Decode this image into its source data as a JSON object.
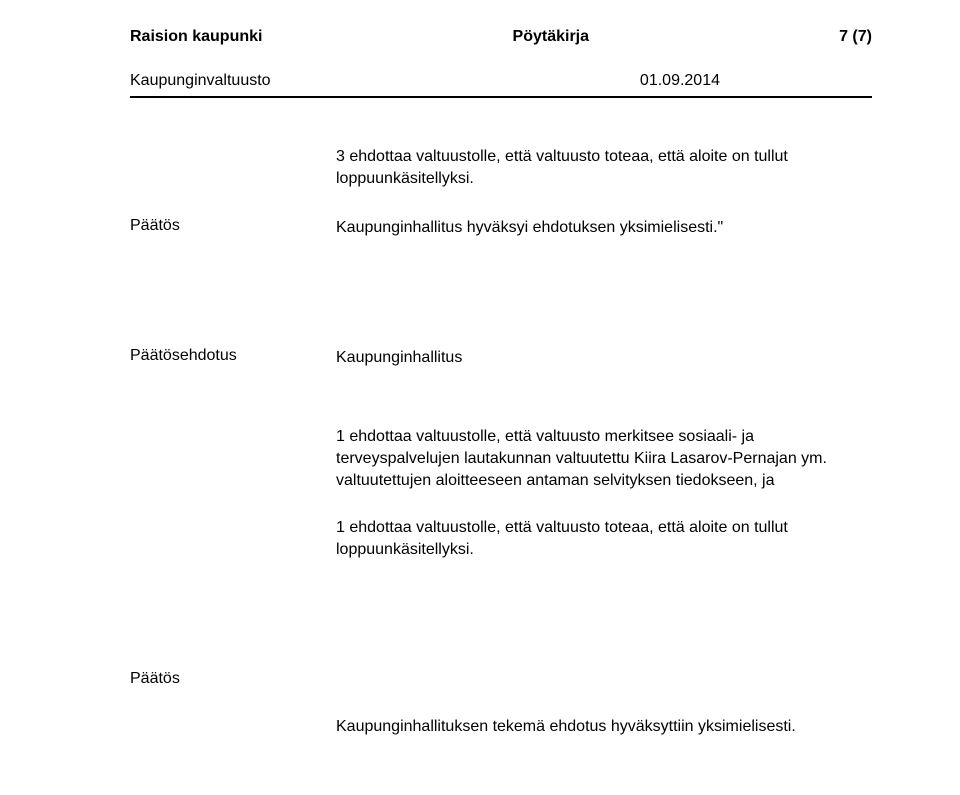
{
  "header": {
    "org": "Raision kaupunki",
    "doctype": "Pöytäkirja",
    "pagenum": "7 (7)"
  },
  "subheader": {
    "body": "Kaupunginvaltuusto",
    "date": "01.09.2014"
  },
  "content": {
    "top_para": "3 ehdottaa valtuustolle, että valtuusto toteaa, että aloite on tullut loppuunkäsitellyksi.",
    "decision1_label": "Päätös",
    "decision1_text": "Kaupunginhallitus hyväksyi ehdotuksen yksimielisesti.\"",
    "proposal_label": "Päätösehdotus",
    "proposal_body": "Kaupunginhallitus",
    "proposal_para1": "1 ehdottaa valtuustolle, että valtuusto merkitsee sosiaali- ja terveyspalvelujen lautakunnan valtuutettu Kiira Lasarov-Pernajan ym. valtuutettujen aloitteeseen antaman selvityksen tiedokseen, ja",
    "proposal_para2": "1 ehdottaa valtuustolle, että valtuusto toteaa, että aloite on tullut loppuunkäsitellyksi.",
    "decision2_label": "Päätös",
    "decision2_text": "Kaupunginhallituksen tekemä ehdotus hyväksyttiin yksimielisesti."
  },
  "style": {
    "text_color": "#000000",
    "background_color": "#ffffff",
    "divider_color": "#000000",
    "base_font_size": 16,
    "header_font_weight": 700
  }
}
